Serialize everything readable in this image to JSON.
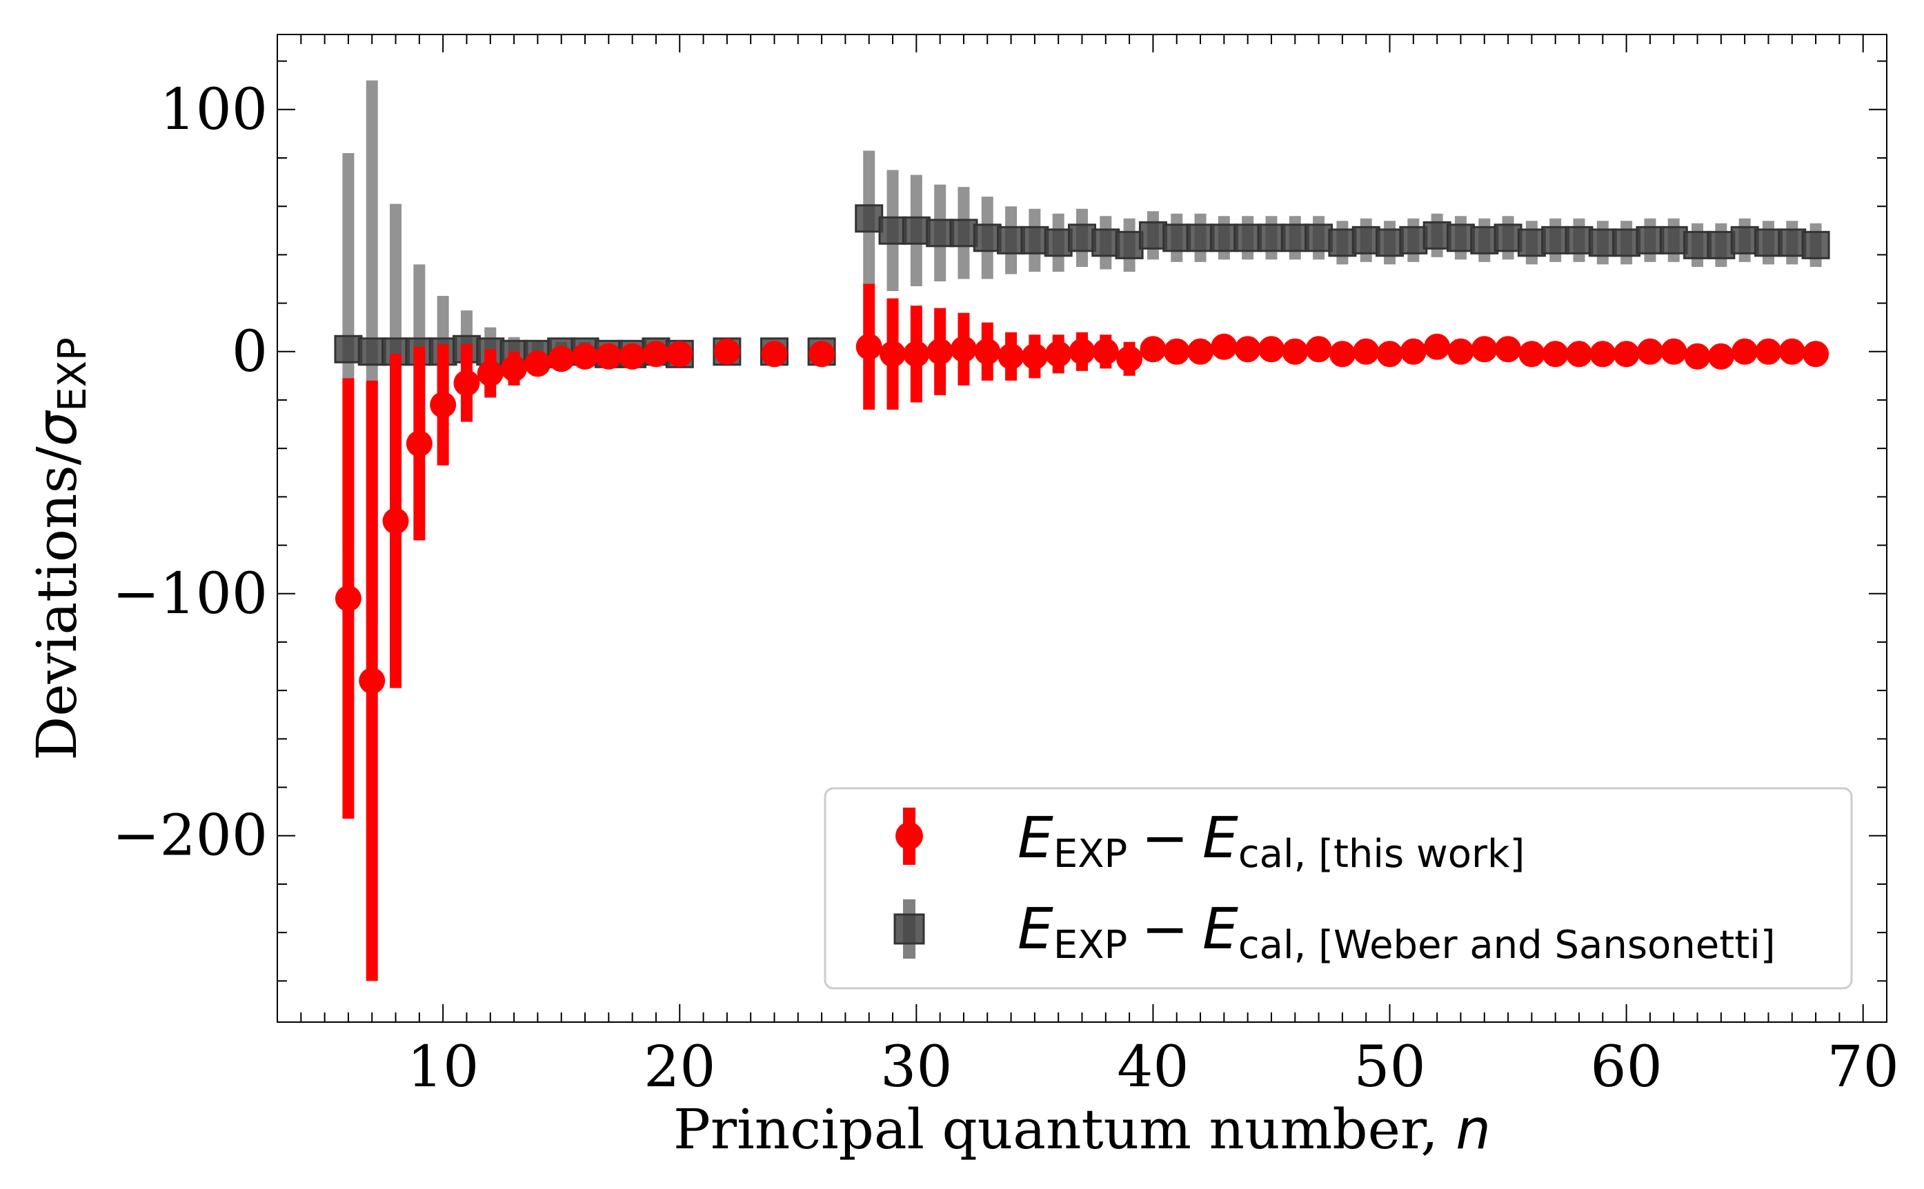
{
  "chart_data": {
    "type": "scatter",
    "xlabel": "Principal quantum number, ",
    "xlabel_var": "n",
    "ylabel": "Deviations/",
    "ylabel_sym": "σ",
    "ylabel_sub": "EXP",
    "xlim": [
      3,
      71
    ],
    "ylim": [
      -277,
      131
    ],
    "x_ticks": [
      10,
      20,
      30,
      40,
      50,
      60,
      70
    ],
    "y_ticks": [
      100,
      0,
      -100,
      -200
    ],
    "y_tick_labels": [
      "100",
      "0",
      "−100",
      "−200"
    ],
    "grid": false,
    "legend_position": "lower-right",
    "series": [
      {
        "id": "gray",
        "marker": "square",
        "color": "#444444",
        "errorbar_color": "#808080",
        "legend": {
          "E": "E",
          "sub1": "EXP",
          "minus": "−",
          "E2": "E",
          "sub2": "cal, [Weber and Sansonetti]"
        },
        "points": [
          {
            "x": 6,
            "y": 1,
            "err": 81
          },
          {
            "x": 7,
            "y": 0,
            "err": 112
          },
          {
            "x": 8,
            "y": 0,
            "err": 61
          },
          {
            "x": 9,
            "y": 0,
            "err": 36
          },
          {
            "x": 10,
            "y": 0,
            "err": 23
          },
          {
            "x": 11,
            "y": 1,
            "err": 16
          },
          {
            "x": 12,
            "y": 0,
            "err": 10
          },
          {
            "x": 13,
            "y": -1,
            "err": 7
          },
          {
            "x": 14,
            "y": -1,
            "err": 5
          },
          {
            "x": 15,
            "y": 0,
            "err": 4
          },
          {
            "x": 16,
            "y": 0,
            "err": 4
          },
          {
            "x": 17,
            "y": -1,
            "err": 3
          },
          {
            "x": 18,
            "y": -1,
            "err": 3
          },
          {
            "x": 19,
            "y": 0,
            "err": 3
          },
          {
            "x": 20,
            "y": -1,
            "err": 2
          },
          {
            "x": 22,
            "y": 0,
            "err": 2
          },
          {
            "x": 24,
            "y": 0,
            "err": 2
          },
          {
            "x": 26,
            "y": 0,
            "err": 2
          },
          {
            "x": 28,
            "y": 55,
            "err": 28
          },
          {
            "x": 29,
            "y": 50,
            "err": 25
          },
          {
            "x": 30,
            "y": 50,
            "err": 23
          },
          {
            "x": 31,
            "y": 49,
            "err": 20
          },
          {
            "x": 32,
            "y": 49,
            "err": 19
          },
          {
            "x": 33,
            "y": 47,
            "err": 17
          },
          {
            "x": 34,
            "y": 46,
            "err": 14
          },
          {
            "x": 35,
            "y": 46,
            "err": 13
          },
          {
            "x": 36,
            "y": 45,
            "err": 12
          },
          {
            "x": 37,
            "y": 47,
            "err": 12
          },
          {
            "x": 38,
            "y": 45,
            "err": 11
          },
          {
            "x": 39,
            "y": 44,
            "err": 11
          },
          {
            "x": 40,
            "y": 48,
            "err": 10
          },
          {
            "x": 41,
            "y": 47,
            "err": 10
          },
          {
            "x": 42,
            "y": 47,
            "err": 10
          },
          {
            "x": 43,
            "y": 47,
            "err": 9
          },
          {
            "x": 44,
            "y": 47,
            "err": 9
          },
          {
            "x": 45,
            "y": 47,
            "err": 9
          },
          {
            "x": 46,
            "y": 47,
            "err": 9
          },
          {
            "x": 47,
            "y": 47,
            "err": 9
          },
          {
            "x": 48,
            "y": 45,
            "err": 9
          },
          {
            "x": 49,
            "y": 46,
            "err": 9
          },
          {
            "x": 50,
            "y": 45,
            "err": 9
          },
          {
            "x": 51,
            "y": 46,
            "err": 9
          },
          {
            "x": 52,
            "y": 48,
            "err": 9
          },
          {
            "x": 53,
            "y": 47,
            "err": 9
          },
          {
            "x": 54,
            "y": 46,
            "err": 9
          },
          {
            "x": 55,
            "y": 47,
            "err": 9
          },
          {
            "x": 56,
            "y": 45,
            "err": 9
          },
          {
            "x": 57,
            "y": 46,
            "err": 9
          },
          {
            "x": 58,
            "y": 46,
            "err": 9
          },
          {
            "x": 59,
            "y": 45,
            "err": 9
          },
          {
            "x": 60,
            "y": 45,
            "err": 9
          },
          {
            "x": 61,
            "y": 46,
            "err": 9
          },
          {
            "x": 62,
            "y": 46,
            "err": 9
          },
          {
            "x": 63,
            "y": 44,
            "err": 9
          },
          {
            "x": 64,
            "y": 44,
            "err": 9
          },
          {
            "x": 65,
            "y": 46,
            "err": 9
          },
          {
            "x": 66,
            "y": 45,
            "err": 9
          },
          {
            "x": 67,
            "y": 45,
            "err": 9
          },
          {
            "x": 68,
            "y": 44,
            "err": 9
          }
        ]
      },
      {
        "id": "red",
        "marker": "circle",
        "color": "#ff0000",
        "errorbar_color": "#ff0000",
        "legend": {
          "E": "E",
          "sub1": "EXP",
          "minus": "−",
          "E2": "E",
          "sub2": "cal, [this work]"
        },
        "points": [
          {
            "x": 6,
            "y": -102,
            "err": 91
          },
          {
            "x": 7,
            "y": -136,
            "err": 124
          },
          {
            "x": 8,
            "y": -70,
            "err": 69
          },
          {
            "x": 9,
            "y": -38,
            "err": 40
          },
          {
            "x": 10,
            "y": -22,
            "err": 25
          },
          {
            "x": 11,
            "y": -13,
            "err": 16
          },
          {
            "x": 12,
            "y": -9,
            "err": 10
          },
          {
            "x": 13,
            "y": -7,
            "err": 7
          },
          {
            "x": 14,
            "y": -5,
            "err": 5
          },
          {
            "x": 15,
            "y": -3,
            "err": 4
          },
          {
            "x": 16,
            "y": -2,
            "err": 4
          },
          {
            "x": 17,
            "y": -2,
            "err": 3
          },
          {
            "x": 18,
            "y": -2,
            "err": 3
          },
          {
            "x": 19,
            "y": -1,
            "err": 3
          },
          {
            "x": 20,
            "y": -1,
            "err": 2
          },
          {
            "x": 22,
            "y": 0,
            "err": 2
          },
          {
            "x": 24,
            "y": -1,
            "err": 2
          },
          {
            "x": 26,
            "y": -1,
            "err": 2
          },
          {
            "x": 28,
            "y": 2,
            "err": 26
          },
          {
            "x": 29,
            "y": -1,
            "err": 23
          },
          {
            "x": 30,
            "y": -1,
            "err": 20
          },
          {
            "x": 31,
            "y": 0,
            "err": 18
          },
          {
            "x": 32,
            "y": 1,
            "err": 15
          },
          {
            "x": 33,
            "y": 0,
            "err": 12
          },
          {
            "x": 34,
            "y": -2,
            "err": 10
          },
          {
            "x": 35,
            "y": -2,
            "err": 9
          },
          {
            "x": 36,
            "y": -1,
            "err": 8
          },
          {
            "x": 37,
            "y": 0,
            "err": 8
          },
          {
            "x": 38,
            "y": 0,
            "err": 7
          },
          {
            "x": 39,
            "y": -3,
            "err": 7
          },
          {
            "x": 40,
            "y": 1,
            "err": 5
          },
          {
            "x": 41,
            "y": 0,
            "err": 5
          },
          {
            "x": 42,
            "y": 0,
            "err": 5
          },
          {
            "x": 43,
            "y": 2,
            "err": 5
          },
          {
            "x": 44,
            "y": 1,
            "err": 5
          },
          {
            "x": 45,
            "y": 1,
            "err": 5
          },
          {
            "x": 46,
            "y": 0,
            "err": 5
          },
          {
            "x": 47,
            "y": 1,
            "err": 5
          },
          {
            "x": 48,
            "y": -1,
            "err": 5
          },
          {
            "x": 49,
            "y": 0,
            "err": 5
          },
          {
            "x": 50,
            "y": -1,
            "err": 5
          },
          {
            "x": 51,
            "y": 0,
            "err": 5
          },
          {
            "x": 52,
            "y": 2,
            "err": 5
          },
          {
            "x": 53,
            "y": 0,
            "err": 5
          },
          {
            "x": 54,
            "y": 1,
            "err": 5
          },
          {
            "x": 55,
            "y": 1,
            "err": 5
          },
          {
            "x": 56,
            "y": -1,
            "err": 5
          },
          {
            "x": 57,
            "y": -1,
            "err": 5
          },
          {
            "x": 58,
            "y": -1,
            "err": 5
          },
          {
            "x": 59,
            "y": -1,
            "err": 5
          },
          {
            "x": 60,
            "y": -1,
            "err": 5
          },
          {
            "x": 61,
            "y": 0,
            "err": 5
          },
          {
            "x": 62,
            "y": 0,
            "err": 5
          },
          {
            "x": 63,
            "y": -2,
            "err": 5
          },
          {
            "x": 64,
            "y": -2,
            "err": 5
          },
          {
            "x": 65,
            "y": 0,
            "err": 5
          },
          {
            "x": 66,
            "y": 0,
            "err": 5
          },
          {
            "x": 67,
            "y": 0,
            "err": 5
          },
          {
            "x": 68,
            "y": -1,
            "err": 5
          }
        ]
      }
    ]
  }
}
